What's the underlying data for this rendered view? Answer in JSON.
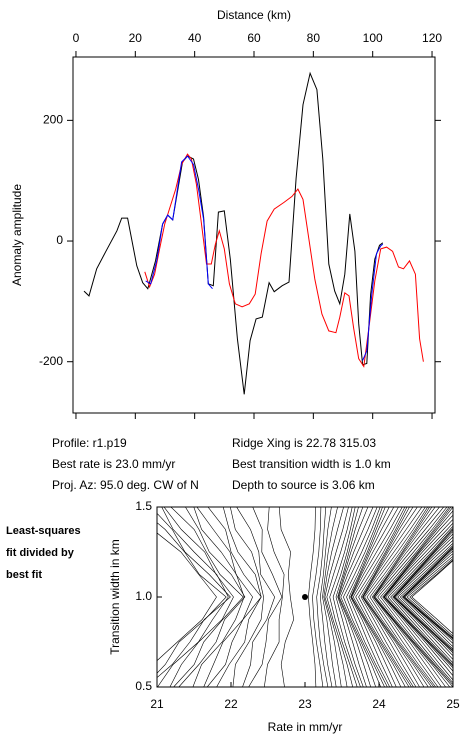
{
  "chart_data": [
    {
      "type": "line",
      "xlabel": "Distance (km)",
      "ylabel": "Anomaly amplitude",
      "xlim": [
        -1,
        121
      ],
      "ylim": [
        -285,
        305
      ],
      "xticks": [
        0,
        20,
        40,
        60,
        80,
        100,
        120
      ],
      "yticks": [
        -200,
        0,
        200
      ],
      "series": [
        {
          "color": "#000000",
          "x": [
            2.7,
            4.4,
            7.0,
            10.1,
            13.8,
            15.4,
            17.4,
            20.5,
            22.5,
            24.2,
            26.8,
            29.2,
            30.9,
            32.6,
            35.9,
            37.6,
            39.6,
            41.3,
            43.0,
            44.6,
            46.3,
            48.0,
            50.0,
            52.0,
            54.4,
            56.7,
            58.7,
            60.7,
            62.8,
            65.1,
            66.8,
            69.5,
            71.8,
            74.2,
            76.5,
            78.9,
            81.2,
            83.2,
            85.2,
            87.2,
            88.9,
            90.6,
            92.3,
            94.0,
            95.3,
            96.6,
            98.0,
            99.3,
            100.7,
            102.3,
            103.4
          ],
          "values": [
            -83,
            -91,
            -46,
            -17,
            17,
            38,
            38,
            -41,
            -69,
            -79,
            -33,
            28,
            43,
            35,
            131,
            141,
            136,
            102,
            40,
            -71,
            -74,
            48,
            50,
            -30,
            -162,
            -254,
            -165,
            -129,
            -126,
            -69,
            -84,
            -74,
            -68,
            104,
            226,
            278,
            251,
            136,
            -38,
            -83,
            -104,
            -55,
            45,
            -17,
            -137,
            -205,
            -203,
            -89,
            -30,
            -7,
            -3
          ]
        },
        {
          "color": "#ff0000",
          "x": [
            23.2,
            24.8,
            26.5,
            28.2,
            29.9,
            31.5,
            33.6,
            35.6,
            37.6,
            38.9,
            40.6,
            42.3,
            44.0,
            45.6,
            47.0,
            48.3,
            50.0,
            51.7,
            53.7,
            56.0,
            58.4,
            60.4,
            62.4,
            64.4,
            66.8,
            70.1,
            72.8,
            74.8,
            76.5,
            78.5,
            80.5,
            82.9,
            85.2,
            87.6,
            88.9,
            90.6,
            92.0,
            93.6,
            95.3,
            97.0,
            98.7,
            100.7,
            102.7,
            104.7,
            106.7,
            108.7,
            110.4,
            112.4,
            114.4,
            115.8,
            117.1
          ],
          "values": [
            -51,
            -76,
            -55,
            -13,
            28,
            53,
            86,
            127,
            144,
            136,
            94,
            28,
            -38,
            -38,
            -5,
            17,
            -13,
            -71,
            -104,
            -109,
            -104,
            -88,
            -21,
            33,
            53,
            64,
            74,
            86,
            69,
            3,
            -63,
            -121,
            -149,
            -152,
            -126,
            -86,
            -91,
            -145,
            -195,
            -208,
            -145,
            -66,
            -13,
            -10,
            -17,
            -43,
            -46,
            -33,
            -55,
            -162,
            -200
          ]
        },
        {
          "color": "#0000ff",
          "x": [
            23.5,
            25.2,
            27.2,
            29.2,
            30.9,
            32.6,
            35.6,
            37.6,
            39.6,
            41.3,
            43.0,
            44.6,
            46.0,
            null,
            96.6,
            98.0,
            99.7,
            101.3,
            102.7,
            103.4
          ],
          "values": [
            -66,
            -71,
            -33,
            28,
            43,
            35,
            131,
            141,
            127,
            86,
            36,
            -71,
            -79,
            null,
            -198,
            -182,
            -88,
            -21,
            -8,
            -5
          ]
        }
      ],
      "annotations": [
        "Profile: r1.p19",
        "Ridge Xing is 22.78 315.03",
        "Best rate is 23.0 mm/yr",
        "Best transition width is 1.0 km",
        "Proj. Az: 95.0 deg. CW of N",
        "Depth to source is   3.06 km"
      ]
    },
    {
      "type": "contour",
      "xlabel": "Rate in mm/yr",
      "ylabel": "Transition width in km",
      "xlim": [
        21,
        25
      ],
      "ylim": [
        0.5,
        1.5
      ],
      "xticks": [
        21,
        22,
        23,
        24,
        25
      ],
      "yticks": [
        0.5,
        {
          "value": 1,
          "label": "1.0"
        },
        1.5
      ],
      "point": {
        "x": 23,
        "y": 1
      },
      "note_lines": [
        "Least-squares",
        "fit divided by",
        "best fit"
      ]
    }
  ]
}
